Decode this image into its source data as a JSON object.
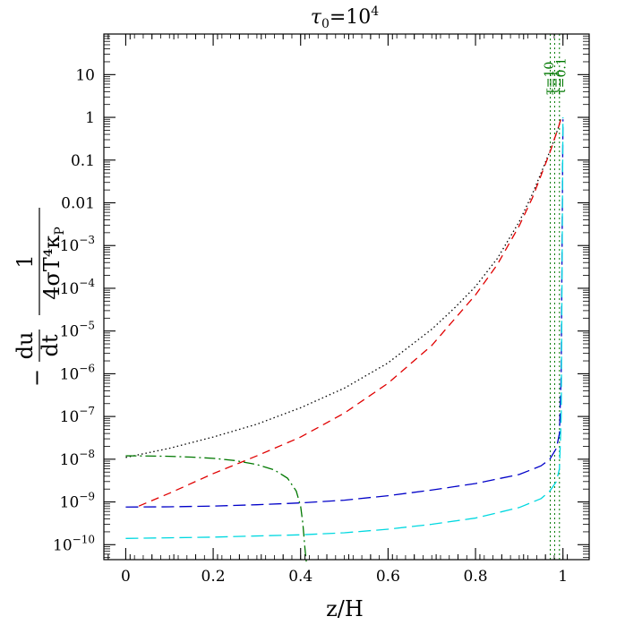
{
  "chart_data": {
    "type": "line",
    "title_base": "τ",
    "title_sub": "0",
    "title_rest": "=10",
    "title_sup": "4",
    "xlabel": "z/H",
    "ylabel_minus": "−",
    "ylabel_du": "du",
    "ylabel_dt": "dt",
    "ylabel_one": "1",
    "ylabel_den": "4σT⁴κ",
    "ylabel_den_sub": "P",
    "xlim": [
      -0.05,
      1.06
    ],
    "ylim": [
      -10.35,
      1.95
    ],
    "yscale": "log",
    "x_ticks": [
      0,
      0.2,
      0.4,
      0.6,
      0.8,
      1
    ],
    "x_tick_labels": [
      "0",
      "0.2",
      "0.4",
      "0.6",
      "0.8",
      "1"
    ],
    "y_tick_labels": [
      {
        "log": 1,
        "base": "10",
        "exp": ""
      },
      {
        "log": 0,
        "base": "1",
        "exp": ""
      },
      {
        "log": -1,
        "base": "0.1",
        "exp": ""
      },
      {
        "log": -2,
        "base": "0.01",
        "exp": ""
      },
      {
        "log": -3,
        "base": "10",
        "exp": "−3"
      },
      {
        "log": -4,
        "base": "10",
        "exp": "−4"
      },
      {
        "log": -5,
        "base": "10",
        "exp": "−5"
      },
      {
        "log": -6,
        "base": "10",
        "exp": "−6"
      },
      {
        "log": -7,
        "base": "10",
        "exp": "−7"
      },
      {
        "log": -8,
        "base": "10",
        "exp": "−8"
      },
      {
        "log": -9,
        "base": "10",
        "exp": "−9"
      },
      {
        "log": -10,
        "base": "10",
        "exp": "−10"
      }
    ],
    "grid": false,
    "series": [
      {
        "color": "#000000",
        "dash": "1.5,3",
        "x": [
          0.0,
          0.1,
          0.2,
          0.3,
          0.4,
          0.5,
          0.6,
          0.7,
          0.75,
          0.8,
          0.85,
          0.9,
          0.93,
          0.95,
          0.97,
          0.98,
          0.99,
          0.995
        ],
        "y": [
          1.1e-08,
          1.8e-08,
          3.3e-08,
          6.6e-08,
          1.6e-07,
          4.6e-07,
          1.8e-06,
          1.1e-05,
          3.3e-05,
          0.00011,
          0.0005,
          0.0036,
          0.016,
          0.05,
          0.16,
          0.3,
          0.6,
          0.9
        ]
      },
      {
        "color": "#e00000",
        "dash": "9,6",
        "x": [
          0.03,
          0.1,
          0.2,
          0.3,
          0.4,
          0.5,
          0.6,
          0.7,
          0.75,
          0.8,
          0.85,
          0.9,
          0.93,
          0.95,
          0.97,
          0.98,
          0.99,
          0.995
        ],
        "y": [
          8e-10,
          1.6e-09,
          4.6e-09,
          1.2e-08,
          3.3e-08,
          1.2e-07,
          6e-07,
          4.6e-06,
          1.8e-05,
          7e-05,
          0.00036,
          0.0029,
          0.013,
          0.044,
          0.15,
          0.3,
          0.6,
          0.9
        ]
      },
      {
        "color": "#0000c8",
        "dash": "14,6",
        "x": [
          0.0,
          0.1,
          0.2,
          0.3,
          0.4,
          0.5,
          0.6,
          0.7,
          0.8,
          0.9,
          0.95,
          0.97,
          0.985,
          0.992,
          0.996,
          1.0
        ],
        "y": [
          7.6e-10,
          7.7e-10,
          8e-10,
          8.6e-10,
          9.5e-10,
          1.1e-09,
          1.4e-09,
          1.9e-09,
          2.7e-09,
          4.4e-09,
          7e-09,
          1e-08,
          1.8e-08,
          4e-08,
          1e-06,
          0.9
        ]
      },
      {
        "color": "#00d8e0",
        "dash": "14,6",
        "x": [
          0.0,
          0.1,
          0.2,
          0.3,
          0.4,
          0.5,
          0.6,
          0.7,
          0.8,
          0.9,
          0.95,
          0.97,
          0.985,
          0.992,
          0.996,
          1.0
        ],
        "y": [
          1.4e-10,
          1.45e-10,
          1.5e-10,
          1.6e-10,
          1.7e-10,
          1.9e-10,
          2.3e-10,
          3e-10,
          4.2e-10,
          7.4e-10,
          1.2e-09,
          1.8e-09,
          3e-09,
          6e-09,
          1e-07,
          1.0
        ]
      },
      {
        "color": "#007800",
        "dash": "12,4,2,4",
        "x": [
          0.0,
          0.05,
          0.1,
          0.15,
          0.2,
          0.25,
          0.3,
          0.34,
          0.37,
          0.39,
          0.4,
          0.405,
          0.41,
          0.413
        ],
        "y": [
          1.2e-08,
          1.19e-08,
          1.17e-08,
          1.12e-08,
          1.05e-08,
          9.3e-09,
          7.5e-09,
          5.6e-09,
          3.6e-09,
          1.8e-09,
          8e-10,
          3.2e-10,
          8e-11,
          4e-11
        ]
      }
    ],
    "vlines": [
      {
        "x": 0.971,
        "color": "#007800",
        "dash": "2,3"
      },
      {
        "x": 0.981,
        "color": "#007800",
        "dash": "2,3"
      },
      {
        "x": 0.992,
        "color": "#007800",
        "dash": "2,3"
      }
    ],
    "annotations": [
      {
        "text": "τ=10",
        "x": 0.968,
        "color": "#007800"
      },
      {
        "text": "τ=1",
        "x": 0.98,
        "color": "#007800"
      },
      {
        "text": "τ=0.1",
        "x": 0.996,
        "color": "#007800"
      }
    ]
  }
}
